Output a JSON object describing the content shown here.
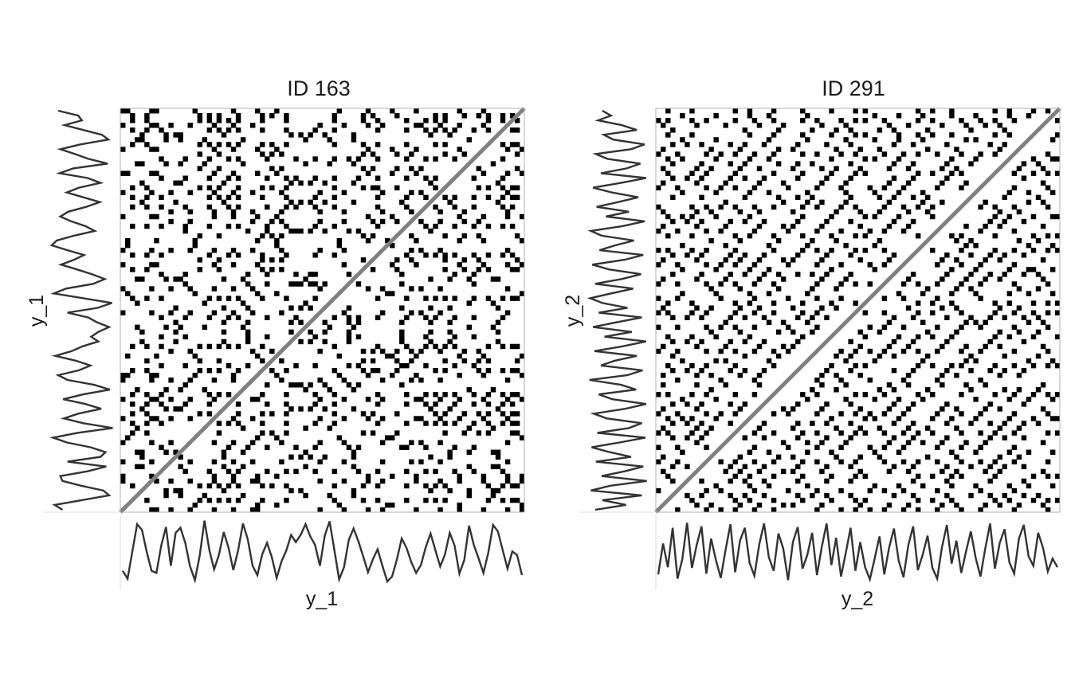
{
  "colors": {
    "recurrent": "#000000",
    "background": "#ffffff",
    "line_of_identity": "#808080",
    "series_line": "#333333",
    "frame": "#b0b0b0"
  },
  "chart_data": [
    {
      "type": "heatmap",
      "subtype": "recurrence-plot",
      "title": "ID 163",
      "xlabel": "y_1",
      "ylabel": "y_1",
      "n": 84,
      "series": [
        {
          "name": "",
          "values": [
            0.26,
            0.15,
            0.53,
            0.91,
            0.83,
            0.52,
            0.26,
            0.23,
            0.61,
            0.87,
            0.33,
            0.79,
            0.86,
            0.65,
            0.32,
            0.13,
            0.47,
            0.96,
            0.55,
            0.28,
            0.48,
            0.8,
            0.58,
            0.27,
            0.55,
            0.92,
            0.7,
            0.33,
            0.2,
            0.49,
            0.65,
            0.45,
            0.16,
            0.39,
            0.54,
            0.76,
            0.66,
            0.76,
            0.91,
            0.74,
            0.62,
            0.33,
            0.75,
            0.95,
            0.55,
            0.14,
            0.31,
            0.69,
            0.85,
            0.67,
            0.46,
            0.24,
            0.42,
            0.56,
            0.33,
            0.11,
            0.18,
            0.42,
            0.71,
            0.58,
            0.38,
            0.23,
            0.34,
            0.59,
            0.78,
            0.55,
            0.32,
            0.49,
            0.79,
            0.61,
            0.22,
            0.41,
            0.89,
            0.62,
            0.43,
            0.23,
            0.51,
            0.9,
            0.81,
            0.55,
            0.29,
            0.53,
            0.48,
            0.2
          ]
        }
      ]
    },
    {
      "type": "heatmap",
      "subtype": "recurrence-plot",
      "title": "ID 291",
      "xlabel": "y_2",
      "ylabel": "y_2",
      "n": 84,
      "series": [
        {
          "name": "",
          "values": [
            0.21,
            0.64,
            0.31,
            0.86,
            0.15,
            0.42,
            0.93,
            0.3,
            0.62,
            0.88,
            0.22,
            0.71,
            0.41,
            0.16,
            0.55,
            0.91,
            0.24,
            0.68,
            0.86,
            0.37,
            0.19,
            0.63,
            0.92,
            0.45,
            0.26,
            0.78,
            0.57,
            0.13,
            0.66,
            0.87,
            0.29,
            0.48,
            0.79,
            0.2,
            0.59,
            0.92,
            0.34,
            0.72,
            0.18,
            0.51,
            0.86,
            0.26,
            0.66,
            0.31,
            0.14,
            0.43,
            0.74,
            0.21,
            0.58,
            0.85,
            0.4,
            0.17,
            0.62,
            0.88,
            0.27,
            0.49,
            0.75,
            0.3,
            0.15,
            0.59,
            0.9,
            0.36,
            0.68,
            0.23,
            0.53,
            0.81,
            0.44,
            0.18,
            0.57,
            0.92,
            0.29,
            0.65,
            0.84,
            0.38,
            0.22,
            0.71,
            0.9,
            0.46,
            0.33,
            0.79,
            0.58,
            0.25,
            0.43,
            0.31
          ]
        }
      ]
    }
  ]
}
